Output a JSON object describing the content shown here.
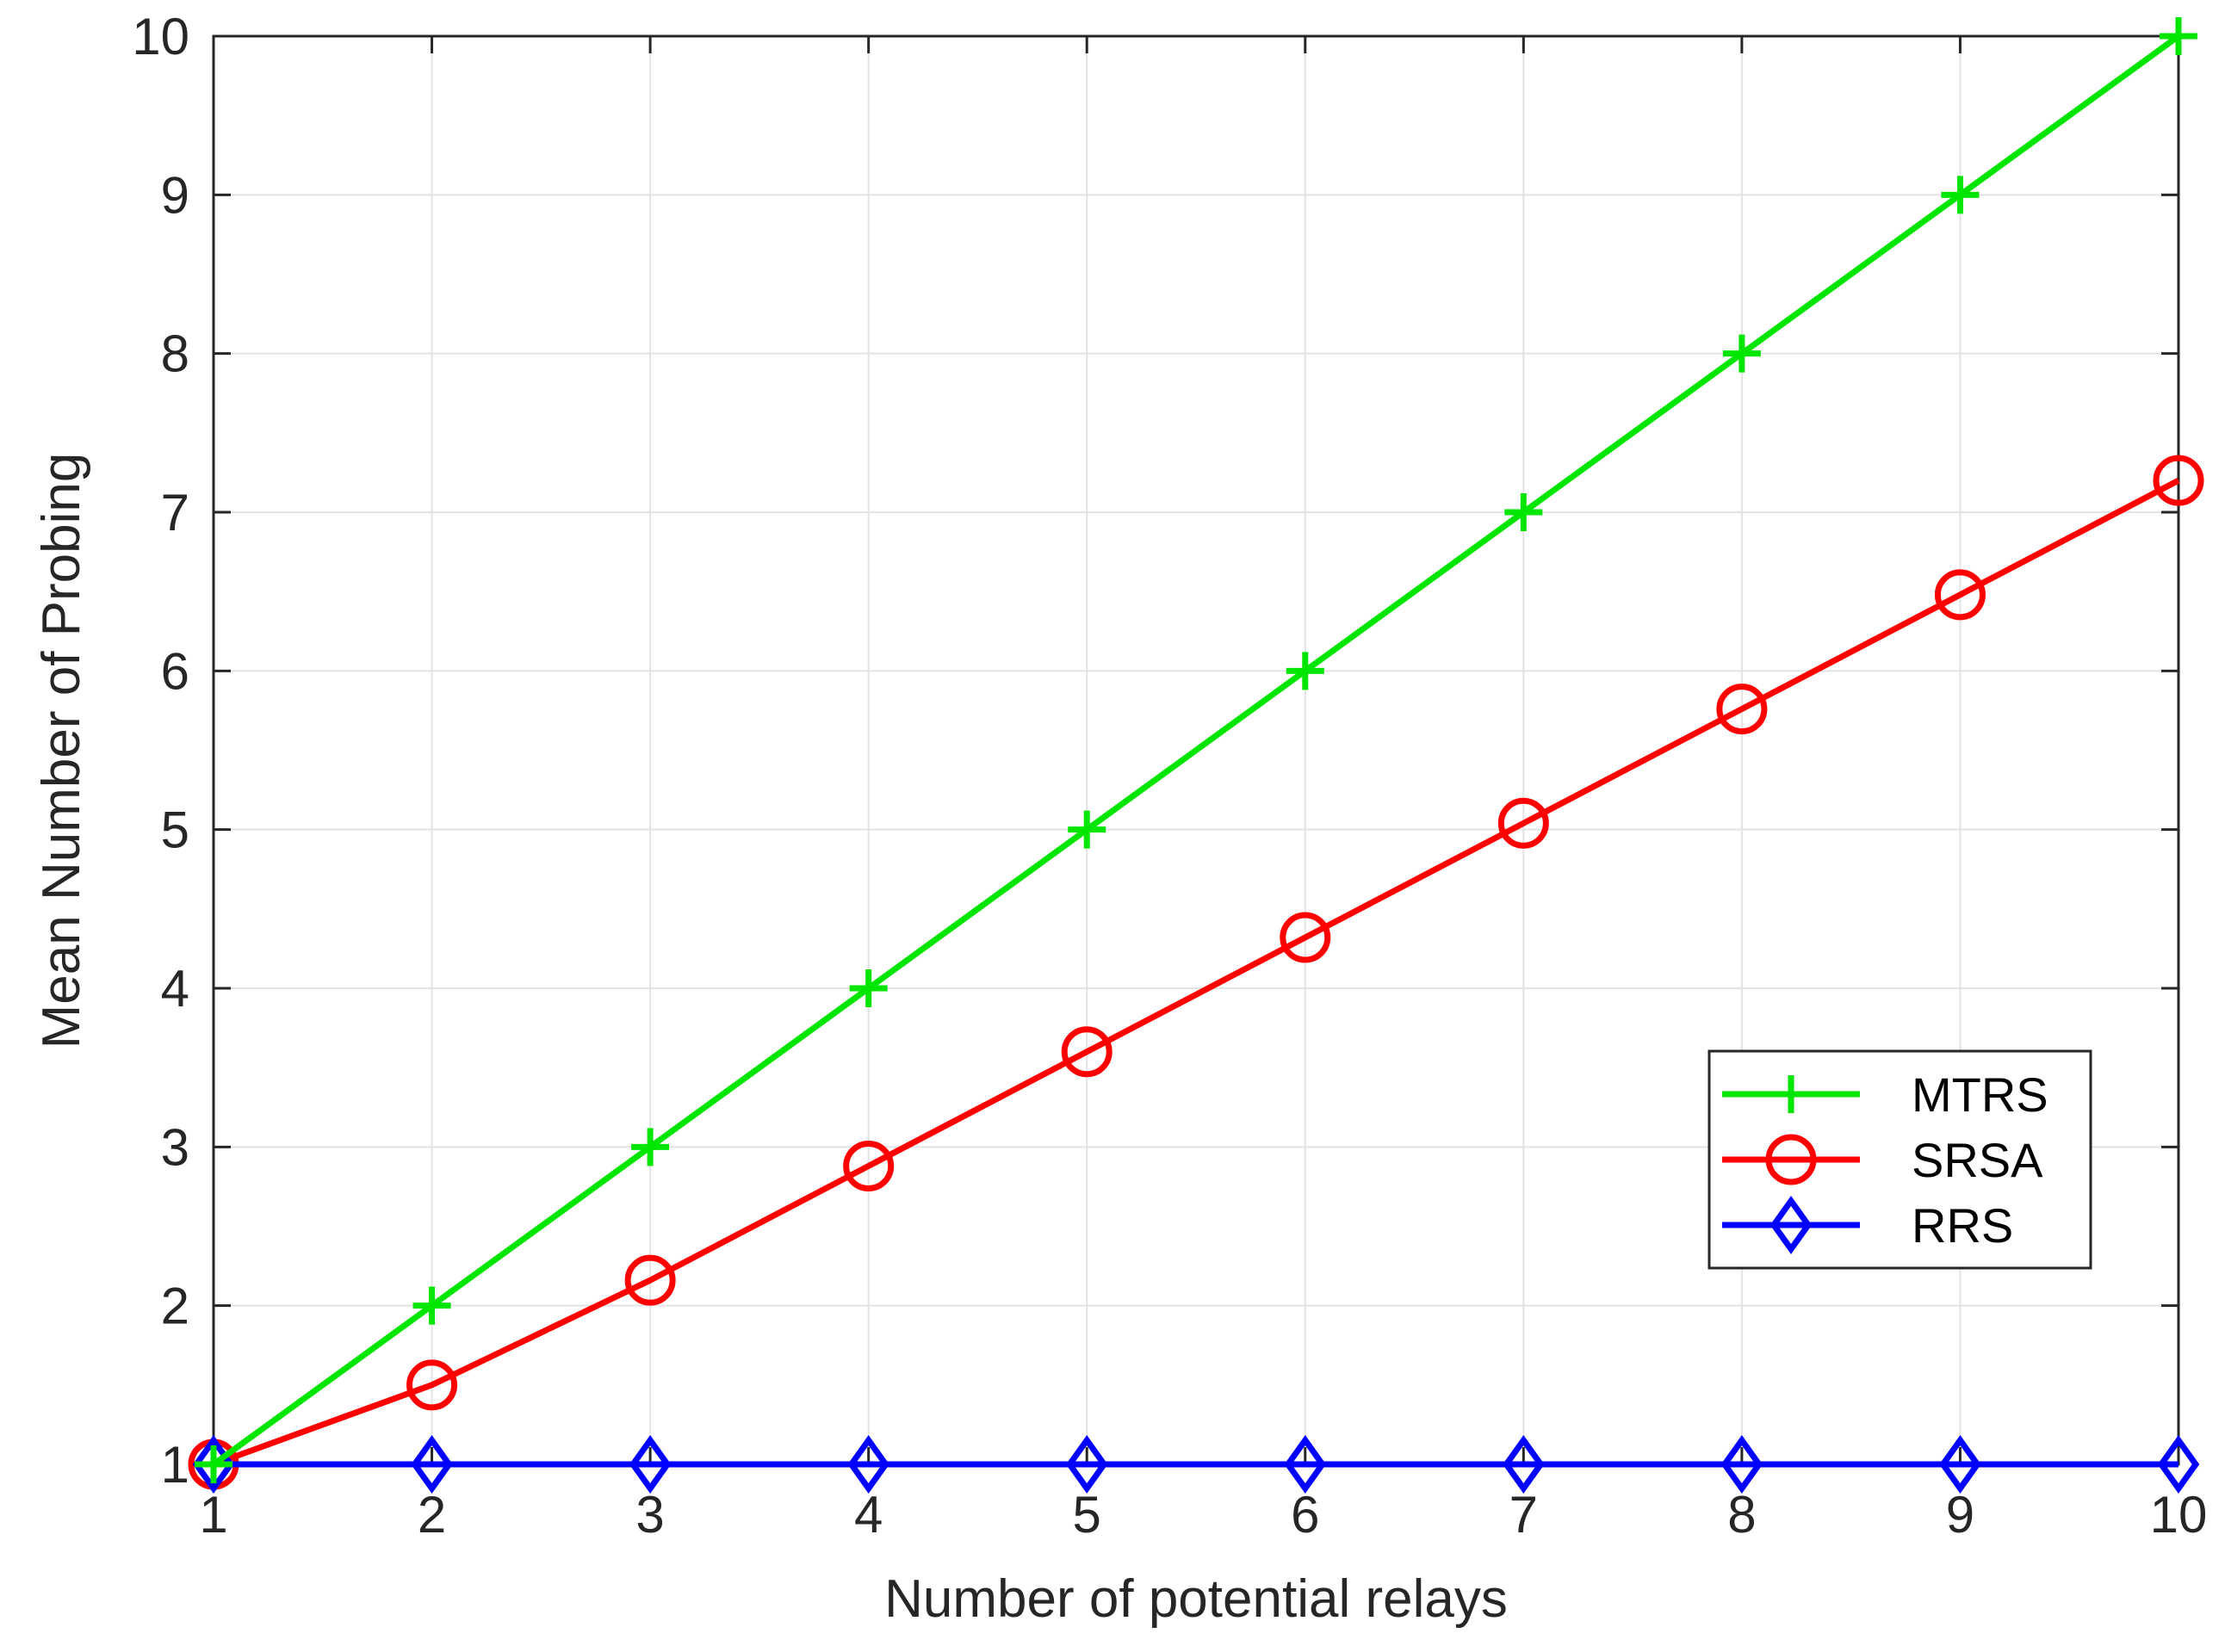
{
  "chart_data": {
    "type": "line",
    "title": "",
    "xlabel": "Number of potential relays",
    "ylabel": "Mean Number of Probing",
    "xlim": [
      1,
      10
    ],
    "ylim": [
      1,
      10
    ],
    "x": [
      1,
      2,
      3,
      4,
      5,
      6,
      7,
      8,
      9,
      10
    ],
    "xticks": [
      "1",
      "2",
      "3",
      "4",
      "5",
      "6",
      "7",
      "8",
      "9",
      "10"
    ],
    "yticks": [
      "1",
      "2",
      "3",
      "4",
      "5",
      "6",
      "7",
      "8",
      "9",
      "10"
    ],
    "grid": true,
    "legend_position": "lower-right",
    "series": [
      {
        "name": "MTRS",
        "color": "#00e600",
        "marker": "plus",
        "values": [
          1,
          2,
          3,
          4,
          5,
          6,
          7,
          8,
          9,
          10
        ]
      },
      {
        "name": "SRSA",
        "color": "#ff0000",
        "marker": "circle",
        "values": [
          1,
          1.5,
          2.16,
          2.88,
          3.6,
          4.32,
          5.04,
          5.76,
          6.48,
          7.2
        ]
      },
      {
        "name": "RRS",
        "color": "#0000ff",
        "marker": "diamond",
        "values": [
          1,
          1,
          1,
          1,
          1,
          1,
          1,
          1,
          1,
          1
        ]
      }
    ]
  }
}
